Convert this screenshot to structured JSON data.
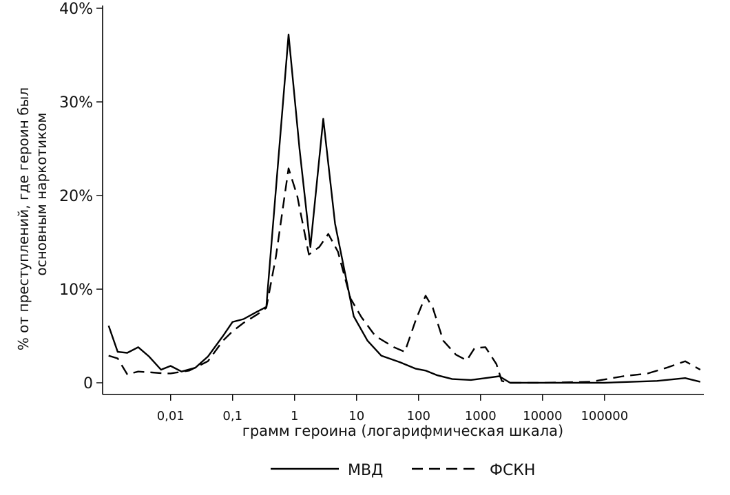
{
  "chart_data": {
    "type": "line",
    "x_scale": "log",
    "xlabel": "грамм героина (логарифмическая шкала)",
    "ylabel_lines": [
      "% от преступлений, где героин был",
      "основным наркотиком"
    ],
    "ylim": [
      0,
      40
    ],
    "xlim": [
      0.0008,
      4000000
    ],
    "y_ticks": [
      0,
      10,
      20,
      30,
      40
    ],
    "y_tick_labels": [
      "0",
      "10%",
      "20%",
      "30%",
      "40%"
    ],
    "x_ticks": [
      0.01,
      0.1,
      1,
      10,
      100,
      1000,
      10000,
      100000
    ],
    "x_tick_labels": [
      "0,01",
      "0,1",
      "1",
      "10",
      "100",
      "1000",
      "10000",
      "100000"
    ],
    "grid": false,
    "legend_position": "bottom",
    "series": [
      {
        "name": "МВД",
        "style": "solid",
        "color": "#000000",
        "points": [
          [
            0.001,
            6.1
          ],
          [
            0.0014,
            3.3
          ],
          [
            0.002,
            3.2
          ],
          [
            0.003,
            3.8
          ],
          [
            0.0045,
            2.8
          ],
          [
            0.007,
            1.4
          ],
          [
            0.01,
            1.8
          ],
          [
            0.015,
            1.2
          ],
          [
            0.025,
            1.6
          ],
          [
            0.04,
            2.8
          ],
          [
            0.07,
            5.0
          ],
          [
            0.1,
            6.5
          ],
          [
            0.15,
            6.8
          ],
          [
            0.25,
            7.6
          ],
          [
            0.35,
            8.1
          ],
          [
            0.8,
            37.2
          ],
          [
            1.2,
            25.0
          ],
          [
            1.8,
            14.5
          ],
          [
            2.9,
            28.2
          ],
          [
            4.5,
            17.0
          ],
          [
            9,
            7.1
          ],
          [
            15,
            4.5
          ],
          [
            25,
            2.9
          ],
          [
            50,
            2.2
          ],
          [
            90,
            1.5
          ],
          [
            130,
            1.3
          ],
          [
            200,
            0.8
          ],
          [
            350,
            0.4
          ],
          [
            700,
            0.3
          ],
          [
            1200,
            0.5
          ],
          [
            2000,
            0.7
          ],
          [
            3000,
            0.0
          ],
          [
            10000,
            0.0
          ],
          [
            100000,
            0.0
          ],
          [
            700000,
            0.2
          ],
          [
            2000000,
            0.5
          ],
          [
            3500000,
            0.1
          ]
        ]
      },
      {
        "name": "ФСКН",
        "style": "dashed",
        "color": "#000000",
        "points": [
          [
            0.001,
            2.9
          ],
          [
            0.0014,
            2.6
          ],
          [
            0.002,
            0.9
          ],
          [
            0.003,
            1.2
          ],
          [
            0.005,
            1.1
          ],
          [
            0.008,
            1.0
          ],
          [
            0.01,
            1.0
          ],
          [
            0.02,
            1.3
          ],
          [
            0.04,
            2.3
          ],
          [
            0.07,
            4.5
          ],
          [
            0.1,
            5.5
          ],
          [
            0.15,
            6.4
          ],
          [
            0.25,
            7.3
          ],
          [
            0.35,
            8.0
          ],
          [
            0.5,
            13.5
          ],
          [
            0.8,
            22.9
          ],
          [
            1.1,
            20.0
          ],
          [
            1.7,
            13.7
          ],
          [
            2.5,
            14.5
          ],
          [
            3.5,
            15.9
          ],
          [
            5,
            14.0
          ],
          [
            8,
            9.0
          ],
          [
            12,
            7.0
          ],
          [
            20,
            5.0
          ],
          [
            40,
            3.8
          ],
          [
            60,
            3.3
          ],
          [
            90,
            6.7
          ],
          [
            130,
            9.3
          ],
          [
            170,
            8.0
          ],
          [
            250,
            4.5
          ],
          [
            400,
            3.0
          ],
          [
            600,
            2.4
          ],
          [
            800,
            3.7
          ],
          [
            1200,
            3.8
          ],
          [
            1800,
            2.0
          ],
          [
            2200,
            0.2
          ],
          [
            3000,
            0.0
          ],
          [
            10000,
            0.0
          ],
          [
            60000,
            0.1
          ],
          [
            200000,
            0.7
          ],
          [
            500000,
            1.0
          ],
          [
            1000000,
            1.6
          ],
          [
            2000000,
            2.3
          ],
          [
            3500000,
            1.4
          ]
        ]
      }
    ]
  },
  "legend": {
    "items": [
      {
        "name": "МВД",
        "style": "solid"
      },
      {
        "name": "ФСКН",
        "style": "dashed"
      }
    ]
  }
}
